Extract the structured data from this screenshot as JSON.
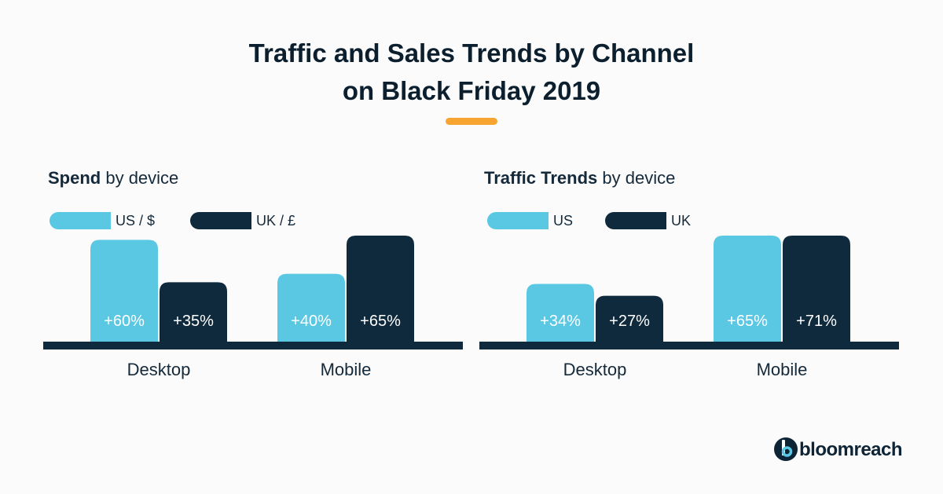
{
  "title_line1": "Traffic and Sales Trends by Channel",
  "title_line2": "on Black Friday 2019",
  "colors": {
    "us": "#5bc8e3",
    "uk": "#0f2a3d",
    "accent": "#f7a530",
    "baseline": "#0f2a3d"
  },
  "logo": {
    "text": "bloomreach"
  },
  "chart_data": [
    {
      "type": "bar",
      "title_bold": "Spend",
      "title_rest": " by device",
      "categories": [
        "Desktop",
        "Mobile"
      ],
      "series": [
        {
          "name": "US / $",
          "values": [
            60,
            40
          ],
          "labels": [
            "+60%",
            "+40%"
          ]
        },
        {
          "name": "UK / £",
          "values": [
            35,
            65
          ],
          "labels": [
            "+35%",
            "+65%"
          ]
        }
      ],
      "ylim": [
        0,
        75
      ],
      "legend": "top-left",
      "grid": false
    },
    {
      "type": "bar",
      "title_bold": "Traffic Trends",
      "title_rest": " by device",
      "categories": [
        "Desktop",
        "Mobile"
      ],
      "series": [
        {
          "name": "US",
          "values": [
            34,
            65
          ],
          "labels": [
            "+34%",
            "+65%"
          ]
        },
        {
          "name": "UK",
          "values": [
            27,
            71
          ],
          "labels": [
            "+27%",
            "+71%"
          ]
        }
      ],
      "ylim": [
        0,
        75
      ],
      "legend": "top-left",
      "grid": false
    }
  ]
}
